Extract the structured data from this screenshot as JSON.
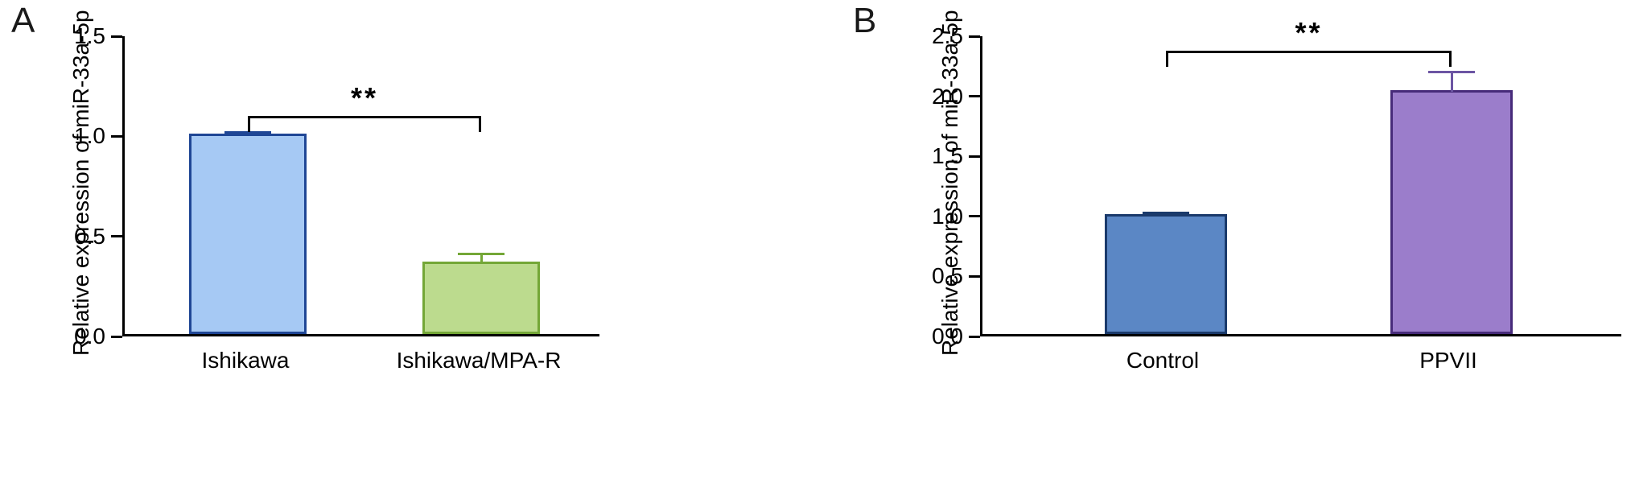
{
  "figure": {
    "background": "#ffffff",
    "axis_color": "#000000"
  },
  "chart_data": [
    {
      "type": "bar",
      "panel_label": "A",
      "title": "",
      "xlabel": "",
      "ylabel": "Relative expression of miR-33a-5p",
      "categories": [
        "Ishikawa",
        "Ishikawa/MPA-R"
      ],
      "values": [
        1.0,
        0.36
      ],
      "errors": [
        0.015,
        0.045
      ],
      "ylim": [
        0,
        1.5
      ],
      "yticks": [
        "0.0",
        "0.5",
        "1.0",
        "1.5"
      ],
      "grid": false,
      "legend": "none",
      "bar_fill": [
        "#a6c9f4",
        "#bcdb8e"
      ],
      "bar_edge": [
        "#1f4695",
        "#74a737"
      ],
      "error_color": [
        "#1f4695",
        "#74a737"
      ],
      "significance": {
        "label": "**",
        "y": 1.1,
        "between": [
          0,
          1
        ]
      }
    },
    {
      "type": "bar",
      "panel_label": "B",
      "title": "",
      "xlabel": "",
      "ylabel": "Relative expression of miR-33a-5p",
      "categories": [
        "Control",
        "PPVII"
      ],
      "values": [
        1.0,
        2.03
      ],
      "errors": [
        0.02,
        0.16
      ],
      "ylim": [
        0,
        2.5
      ],
      "yticks": [
        "0.0",
        "0.5",
        "1.0",
        "1.5",
        "2.0",
        "2.5"
      ],
      "grid": false,
      "legend": "none",
      "bar_fill": [
        "#5b87c5",
        "#9b7dcb"
      ],
      "bar_edge": [
        "#1a3a6b",
        "#472b7a"
      ],
      "error_color": [
        "#1a3a6b",
        "#6c55a3"
      ],
      "significance": {
        "label": "**",
        "y": 2.38,
        "between": [
          0,
          1
        ]
      }
    }
  ]
}
